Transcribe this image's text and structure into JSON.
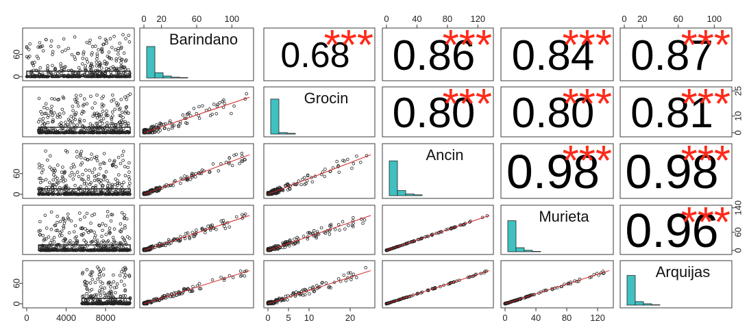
{
  "chart_data": {
    "type": "scatter-matrix",
    "variables": [
      "Barindano",
      "Grocin",
      "Ancin",
      "Murieta",
      "Arquijas"
    ],
    "index_axis": {
      "ticks": [
        0,
        4000,
        8000
      ],
      "range": [
        0,
        10500
      ]
    },
    "variable_axes": {
      "Barindano": {
        "ticks": [
          0,
          20,
          60,
          100
        ],
        "range": [
          0,
          120
        ]
      },
      "Grocin": {
        "ticks": [
          0,
          5,
          10,
          20,
          25
        ],
        "range": [
          0,
          25
        ]
      },
      "Ancin": {
        "ticks": [
          0,
          40,
          80,
          120
        ],
        "range": [
          0,
          135
        ]
      },
      "Murieta": {
        "ticks": [
          0,
          40,
          80,
          120,
          140
        ],
        "range": [
          0,
          135
        ]
      },
      "Arquijas": {
        "ticks": [
          0,
          20,
          60,
          100
        ],
        "range": [
          0,
          115
        ]
      }
    },
    "correlations": [
      {
        "x": "Barindano",
        "y": "Grocin",
        "value": "0.68",
        "stars": "***"
      },
      {
        "x": "Barindano",
        "y": "Ancin",
        "value": "0.86",
        "stars": "***"
      },
      {
        "x": "Barindano",
        "y": "Murieta",
        "value": "0.84",
        "stars": "***"
      },
      {
        "x": "Barindano",
        "y": "Arquijas",
        "value": "0.87",
        "stars": "***"
      },
      {
        "x": "Grocin",
        "y": "Ancin",
        "value": "0.80",
        "stars": "***"
      },
      {
        "x": "Grocin",
        "y": "Murieta",
        "value": "0.80",
        "stars": "***"
      },
      {
        "x": "Grocin",
        "y": "Arquijas",
        "value": "0.81",
        "stars": "***"
      },
      {
        "x": "Ancin",
        "y": "Murieta",
        "value": "0.98",
        "stars": "***"
      },
      {
        "x": "Ancin",
        "y": "Arquijas",
        "value": "0.98",
        "stars": "***"
      },
      {
        "x": "Murieta",
        "y": "Arquijas",
        "value": "0.96",
        "stars": "***"
      }
    ],
    "histogram_shares": {
      "Barindano": [
        0.78,
        0.13,
        0.05,
        0.02,
        0.01
      ],
      "Grocin": [
        0.93,
        0.04,
        0.02
      ],
      "Ancin": [
        0.82,
        0.12,
        0.04,
        0.02
      ],
      "Murieta": [
        0.84,
        0.11,
        0.04,
        0.01
      ],
      "Arquijas": [
        0.85,
        0.1,
        0.04,
        0.01
      ]
    },
    "fit_line": "linear",
    "grid": false,
    "legend": "none",
    "colors": {
      "points": "#222222",
      "fit_line": "#d02020",
      "histogram": "#40c0c0",
      "stars": "#ff2a1a"
    }
  }
}
